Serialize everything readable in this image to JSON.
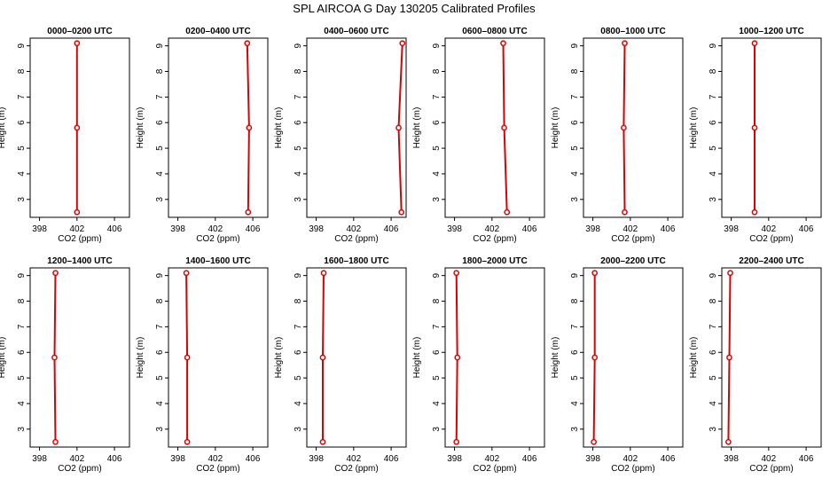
{
  "title": "SPL AIRCOA G  Day 130205  Calibrated Profiles",
  "colors": {
    "series": "#dd0000",
    "axis": "#000000",
    "background": "#ffffff"
  },
  "chart_data": [
    {
      "type": "line",
      "title": "0000–0200 UTC",
      "xlabel": "CO2 (ppm)",
      "ylabel": "Height (m)",
      "xlim": [
        397,
        407.6
      ],
      "ylim": [
        2.3,
        9.3
      ],
      "x_ticks": [
        398,
        402,
        406
      ],
      "y_ticks": [
        3,
        4,
        5,
        6,
        7,
        8,
        9
      ],
      "series": [
        {
          "x": [
            402.0,
            402.0,
            402.0
          ],
          "y": [
            2.5,
            5.8,
            9.1
          ]
        }
      ]
    },
    {
      "type": "line",
      "title": "0200–0400 UTC",
      "xlabel": "CO2 (ppm)",
      "ylabel": "Height (m)",
      "xlim": [
        397,
        407.6
      ],
      "ylim": [
        2.3,
        9.3
      ],
      "x_ticks": [
        398,
        402,
        406
      ],
      "y_ticks": [
        3,
        4,
        5,
        6,
        7,
        8,
        9
      ],
      "series": [
        {
          "x": [
            405.5,
            405.6,
            405.4
          ],
          "y": [
            2.5,
            5.8,
            9.1
          ]
        }
      ]
    },
    {
      "type": "line",
      "title": "0400–0600 UTC",
      "xlabel": "CO2 (ppm)",
      "ylabel": "Height (m)",
      "xlim": [
        397,
        407.6
      ],
      "ylim": [
        2.3,
        9.3
      ],
      "x_ticks": [
        398,
        402,
        406
      ],
      "y_ticks": [
        3,
        4,
        5,
        6,
        7,
        8,
        9
      ],
      "series": [
        {
          "x": [
            407.1,
            406.8,
            407.2
          ],
          "y": [
            2.5,
            5.8,
            9.1
          ]
        }
      ]
    },
    {
      "type": "line",
      "title": "0600–0800 UTC",
      "xlabel": "CO2 (ppm)",
      "ylabel": "Height (m)",
      "xlim": [
        397,
        407.6
      ],
      "ylim": [
        2.3,
        9.3
      ],
      "x_ticks": [
        398,
        402,
        406
      ],
      "y_ticks": [
        3,
        4,
        5,
        6,
        7,
        8,
        9
      ],
      "series": [
        {
          "x": [
            403.6,
            403.3,
            403.2
          ],
          "y": [
            2.5,
            5.8,
            9.1
          ]
        }
      ]
    },
    {
      "type": "line",
      "title": "0800–1000 UTC",
      "xlabel": "CO2 (ppm)",
      "ylabel": "Height (m)",
      "xlim": [
        397,
        407.6
      ],
      "ylim": [
        2.3,
        9.3
      ],
      "x_ticks": [
        398,
        402,
        406
      ],
      "y_ticks": [
        3,
        4,
        5,
        6,
        7,
        8,
        9
      ],
      "series": [
        {
          "x": [
            401.4,
            401.3,
            401.4
          ],
          "y": [
            2.5,
            5.8,
            9.1
          ]
        }
      ]
    },
    {
      "type": "line",
      "title": "1000–1200 UTC",
      "xlabel": "CO2 (ppm)",
      "ylabel": "Height (m)",
      "xlim": [
        397,
        407.6
      ],
      "ylim": [
        2.3,
        9.3
      ],
      "x_ticks": [
        398,
        402,
        406
      ],
      "y_ticks": [
        3,
        4,
        5,
        6,
        7,
        8,
        9
      ],
      "series": [
        {
          "x": [
            400.5,
            400.5,
            400.5
          ],
          "y": [
            2.5,
            5.8,
            9.1
          ]
        }
      ]
    },
    {
      "type": "line",
      "title": "1200–1400 UTC",
      "xlabel": "CO2 (ppm)",
      "ylabel": "Height (m)",
      "xlim": [
        397,
        407.6
      ],
      "ylim": [
        2.3,
        9.3
      ],
      "x_ticks": [
        398,
        402,
        406
      ],
      "y_ticks": [
        3,
        4,
        5,
        6,
        7,
        8,
        9
      ],
      "series": [
        {
          "x": [
            399.7,
            399.6,
            399.7
          ],
          "y": [
            2.5,
            5.8,
            9.1
          ]
        }
      ]
    },
    {
      "type": "line",
      "title": "1400–1600 UTC",
      "xlabel": "CO2 (ppm)",
      "ylabel": "Height (m)",
      "xlim": [
        397,
        407.6
      ],
      "ylim": [
        2.3,
        9.3
      ],
      "x_ticks": [
        398,
        402,
        406
      ],
      "y_ticks": [
        3,
        4,
        5,
        6,
        7,
        8,
        9
      ],
      "series": [
        {
          "x": [
            399.0,
            399.0,
            398.9
          ],
          "y": [
            2.5,
            5.8,
            9.1
          ]
        }
      ]
    },
    {
      "type": "line",
      "title": "1600–1800 UTC",
      "xlabel": "CO2 (ppm)",
      "ylabel": "Height (m)",
      "xlim": [
        397,
        407.6
      ],
      "ylim": [
        2.3,
        9.3
      ],
      "x_ticks": [
        398,
        402,
        406
      ],
      "y_ticks": [
        3,
        4,
        5,
        6,
        7,
        8,
        9
      ],
      "series": [
        {
          "x": [
            398.7,
            398.7,
            398.8
          ],
          "y": [
            2.5,
            5.8,
            9.1
          ]
        }
      ]
    },
    {
      "type": "line",
      "title": "1800–2000 UTC",
      "xlabel": "CO2 (ppm)",
      "ylabel": "Height (m)",
      "xlim": [
        397,
        407.6
      ],
      "ylim": [
        2.3,
        9.3
      ],
      "x_ticks": [
        398,
        402,
        406
      ],
      "y_ticks": [
        3,
        4,
        5,
        6,
        7,
        8,
        9
      ],
      "series": [
        {
          "x": [
            398.2,
            398.3,
            398.2
          ],
          "y": [
            2.5,
            5.8,
            9.1
          ]
        }
      ]
    },
    {
      "type": "line",
      "title": "2000–2200 UTC",
      "xlabel": "CO2 (ppm)",
      "ylabel": "Height (m)",
      "xlim": [
        397,
        407.6
      ],
      "ylim": [
        2.3,
        9.3
      ],
      "x_ticks": [
        398,
        402,
        406
      ],
      "y_ticks": [
        3,
        4,
        5,
        6,
        7,
        8,
        9
      ],
      "series": [
        {
          "x": [
            398.1,
            398.2,
            398.2
          ],
          "y": [
            2.5,
            5.8,
            9.1
          ]
        }
      ]
    },
    {
      "type": "line",
      "title": "2200–2400 UTC",
      "xlabel": "CO2 (ppm)",
      "ylabel": "Height (m)",
      "xlim": [
        397,
        407.6
      ],
      "ylim": [
        2.3,
        9.3
      ],
      "x_ticks": [
        398,
        402,
        406
      ],
      "y_ticks": [
        3,
        4,
        5,
        6,
        7,
        8,
        9
      ],
      "series": [
        {
          "x": [
            397.7,
            397.8,
            397.9
          ],
          "y": [
            2.5,
            5.8,
            9.1
          ]
        }
      ]
    }
  ]
}
